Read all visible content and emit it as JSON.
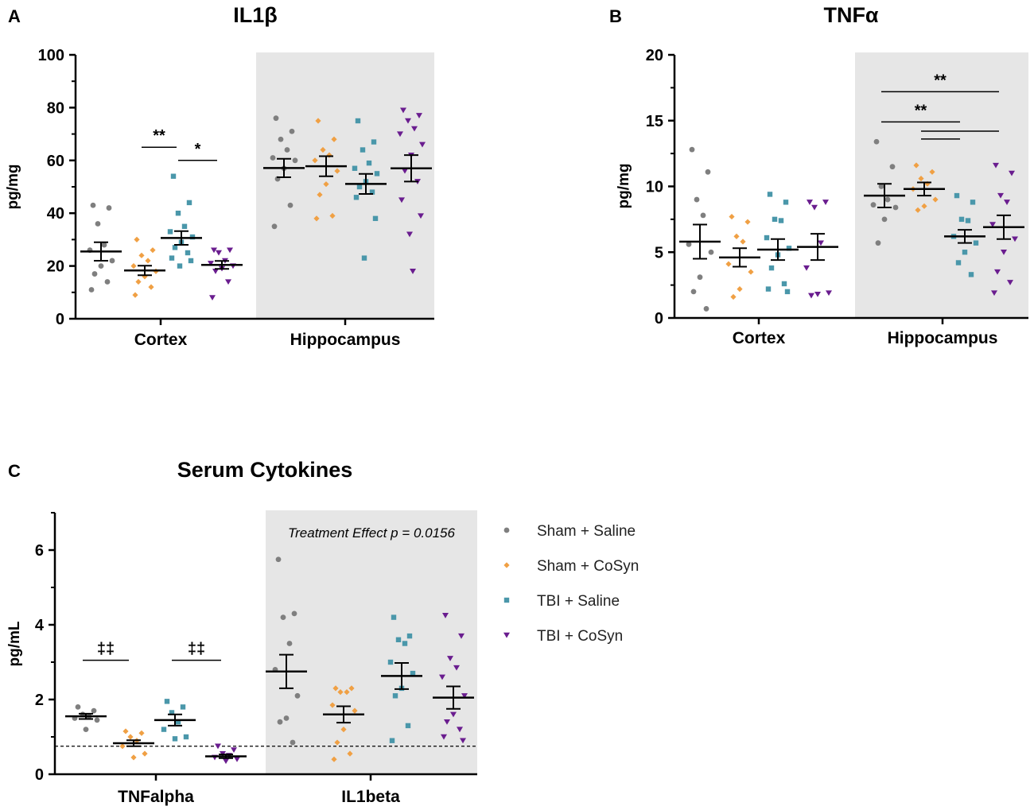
{
  "legend": {
    "entries": [
      {
        "label": "Sham + Saline",
        "color": "#7f7f7f",
        "marker": "circle"
      },
      {
        "label": "Sham + CoSyn",
        "color": "#f0a044",
        "marker": "diamond"
      },
      {
        "label": "TBI + Saline",
        "color": "#4a97aa",
        "marker": "square"
      },
      {
        "label": "TBI + CoSyn",
        "color": "#6a1d8f",
        "marker": "triangle-down"
      }
    ]
  },
  "chart_data": [
    {
      "type": "scatter",
      "panel": "A",
      "title": "IL1β",
      "xlabel": "",
      "ylabel": "pg/mg",
      "ylim": [
        0,
        100
      ],
      "yticks": [
        0,
        20,
        40,
        60,
        80,
        100
      ],
      "categories": [
        "Cortex",
        "Hippocampus"
      ],
      "shaded_category": "Hippocampus",
      "groups": [
        "Sham + Saline",
        "Sham + CoSyn",
        "TBI + Saline",
        "TBI + CoSyn"
      ],
      "series": [
        {
          "category": "Cortex",
          "group": 0,
          "mean": 25.5,
          "sem": 3.5,
          "values": [
            43,
            42,
            36,
            28,
            26,
            22,
            20,
            17,
            14,
            11
          ]
        },
        {
          "category": "Cortex",
          "group": 1,
          "mean": 18.3,
          "sem": 1.8,
          "values": [
            30,
            26,
            24,
            22,
            20,
            18,
            16,
            14,
            12,
            9
          ]
        },
        {
          "category": "Cortex",
          "group": 2,
          "mean": 30.6,
          "sem": 2.6,
          "values": [
            54,
            44,
            40,
            35,
            33,
            31,
            29,
            27,
            25,
            23,
            22,
            20
          ]
        },
        {
          "category": "Cortex",
          "group": 3,
          "mean": 20.4,
          "sem": 1.5,
          "values": [
            26,
            26,
            25,
            22,
            21,
            20,
            19,
            18,
            14,
            8
          ]
        },
        {
          "category": "Hippocampus",
          "group": 0,
          "mean": 57.1,
          "sem": 3.5,
          "values": [
            76,
            71,
            68,
            64,
            61,
            60,
            57,
            53,
            43,
            35
          ]
        },
        {
          "category": "Hippocampus",
          "group": 1,
          "mean": 57.8,
          "sem": 3.8,
          "values": [
            75,
            68,
            64,
            62,
            60,
            56,
            51,
            47,
            39,
            38
          ]
        },
        {
          "category": "Hippocampus",
          "group": 2,
          "mean": 51.1,
          "sem": 3.8,
          "values": [
            75,
            67,
            64,
            59,
            57,
            55,
            52,
            50,
            48,
            46,
            38,
            23
          ]
        },
        {
          "category": "Hippocampus",
          "group": 3,
          "mean": 57.0,
          "sem": 5.0,
          "values": [
            79,
            77,
            75,
            72,
            70,
            66,
            62,
            56,
            52,
            45,
            39,
            32,
            18
          ]
        }
      ],
      "annotations": [
        {
          "text": "**",
          "category": "Cortex",
          "from_group": 1,
          "to_group": 2,
          "y": 65
        },
        {
          "text": "*",
          "category": "Cortex",
          "from_group": 2,
          "to_group": 3,
          "y": 60
        }
      ]
    },
    {
      "type": "scatter",
      "panel": "B",
      "title": "TNFα",
      "xlabel": "",
      "ylabel": "pg/mg",
      "ylim": [
        0,
        20
      ],
      "yticks": [
        0,
        5,
        10,
        15,
        20
      ],
      "categories": [
        "Cortex",
        "Hippocampus"
      ],
      "shaded_category": "Hippocampus",
      "groups": [
        "Sham + Saline",
        "Sham + CoSyn",
        "TBI + Saline",
        "TBI + CoSyn"
      ],
      "series": [
        {
          "category": "Cortex",
          "group": 0,
          "mean": 5.8,
          "sem": 1.3,
          "values": [
            12.8,
            11.1,
            9.0,
            7.8,
            5.6,
            5.0,
            3.1,
            2.0,
            0.7
          ]
        },
        {
          "category": "Cortex",
          "group": 1,
          "mean": 4.6,
          "sem": 0.7,
          "values": [
            7.7,
            7.3,
            6.2,
            5.8,
            4.1,
            3.5,
            2.2,
            1.6
          ]
        },
        {
          "category": "Cortex",
          "group": 2,
          "mean": 5.2,
          "sem": 0.8,
          "values": [
            9.4,
            8.8,
            7.5,
            7.4,
            6.1,
            5.3,
            4.8,
            3.8,
            2.6,
            2.2,
            2.0
          ]
        },
        {
          "category": "Cortex",
          "group": 3,
          "mean": 5.4,
          "sem": 1.0,
          "values": [
            8.8,
            8.8,
            8.4,
            5.7,
            3.8,
            1.9,
            1.8,
            1.7
          ]
        },
        {
          "category": "Hippocampus",
          "group": 0,
          "mean": 9.3,
          "sem": 0.9,
          "values": [
            13.4,
            11.5,
            10.0,
            9.0,
            8.6,
            8.4,
            7.5,
            5.7
          ]
        },
        {
          "category": "Hippocampus",
          "group": 1,
          "mean": 9.8,
          "sem": 0.5,
          "values": [
            11.6,
            11.1,
            10.6,
            10.2,
            9.8,
            9.0,
            8.5,
            8.2
          ]
        },
        {
          "category": "Hippocampus",
          "group": 2,
          "mean": 6.2,
          "sem": 0.5,
          "values": [
            9.3,
            8.8,
            7.5,
            7.4,
            6.2,
            5.7,
            5.0,
            4.2,
            3.3
          ]
        },
        {
          "category": "Hippocampus",
          "group": 3,
          "mean": 6.9,
          "sem": 0.9,
          "values": [
            11.6,
            11.0,
            9.3,
            8.8,
            7.1,
            6.0,
            5.0,
            3.5,
            2.7,
            1.9
          ]
        }
      ],
      "annotations": [
        {
          "text": "**",
          "category": "Hippocampus",
          "from_group": 0,
          "to_group": 3,
          "y": 17.2
        },
        {
          "text": "**",
          "category": "Hippocampus",
          "from_group": 0,
          "to_group": 2,
          "y": 14.9
        },
        {
          "text": "",
          "category": "Hippocampus",
          "from_group": 1,
          "to_group": 3,
          "y": 14.2
        },
        {
          "text": "",
          "category": "Hippocampus",
          "from_group": 1,
          "to_group": 2,
          "y": 13.6
        }
      ]
    },
    {
      "type": "scatter",
      "panel": "C",
      "title": "Serum  Cytokines",
      "xlabel": "",
      "ylabel": "pg/mL",
      "ylim": [
        0,
        7
      ],
      "yticks": [
        0,
        2,
        4,
        6
      ],
      "categories": [
        "TNFalpha",
        "IL1beta"
      ],
      "shaded_category": "IL1beta",
      "shaded_note": "Treatment Effect p = 0.0156",
      "reference_line": 0.75,
      "groups": [
        "Sham + Saline",
        "Sham + CoSyn",
        "TBI + Saline",
        "TBI + CoSyn"
      ],
      "series": [
        {
          "category": "TNFalpha",
          "group": 0,
          "mean": 1.55,
          "sem": 0.07,
          "values": [
            1.8,
            1.7,
            1.6,
            1.55,
            1.5,
            1.45,
            1.2
          ]
        },
        {
          "category": "TNFalpha",
          "group": 1,
          "mean": 0.83,
          "sem": 0.08,
          "values": [
            1.15,
            1.1,
            1.0,
            0.9,
            0.75,
            0.55,
            0.45
          ]
        },
        {
          "category": "TNFalpha",
          "group": 2,
          "mean": 1.45,
          "sem": 0.15,
          "values": [
            1.95,
            1.8,
            1.65,
            1.4,
            1.2,
            1.0,
            0.95
          ]
        },
        {
          "category": "TNFalpha",
          "group": 3,
          "mean": 0.48,
          "sem": 0.05,
          "values": [
            0.75,
            0.65,
            0.55,
            0.5,
            0.45,
            0.4,
            0.35
          ]
        },
        {
          "category": "IL1beta",
          "group": 0,
          "mean": 2.75,
          "sem": 0.45,
          "values": [
            5.75,
            4.3,
            4.2,
            3.5,
            2.8,
            2.1,
            1.5,
            1.4,
            0.85
          ]
        },
        {
          "category": "IL1beta",
          "group": 1,
          "mean": 1.6,
          "sem": 0.22,
          "values": [
            2.3,
            2.3,
            2.2,
            2.2,
            1.85,
            1.7,
            1.2,
            0.85,
            0.55,
            0.4
          ]
        },
        {
          "category": "IL1beta",
          "group": 2,
          "mean": 2.63,
          "sem": 0.35,
          "values": [
            4.2,
            3.7,
            3.6,
            3.5,
            3.0,
            2.7,
            2.3,
            2.1,
            1.3,
            0.9
          ]
        },
        {
          "category": "IL1beta",
          "group": 3,
          "mean": 2.05,
          "sem": 0.3,
          "values": [
            4.25,
            3.7,
            3.1,
            2.85,
            2.6,
            2.1,
            1.6,
            1.4,
            1.2,
            1.0,
            0.9
          ]
        }
      ],
      "annotations": [
        {
          "text": "‡‡",
          "category": "TNFalpha",
          "from_group": 0,
          "to_group": 1,
          "y": 3.05
        },
        {
          "text": "‡‡",
          "category": "TNFalpha",
          "from_group": 2,
          "to_group": 3,
          "y": 3.05
        }
      ]
    }
  ],
  "panels": [
    {
      "letter": "A"
    },
    {
      "letter": "B"
    },
    {
      "letter": "C"
    }
  ]
}
